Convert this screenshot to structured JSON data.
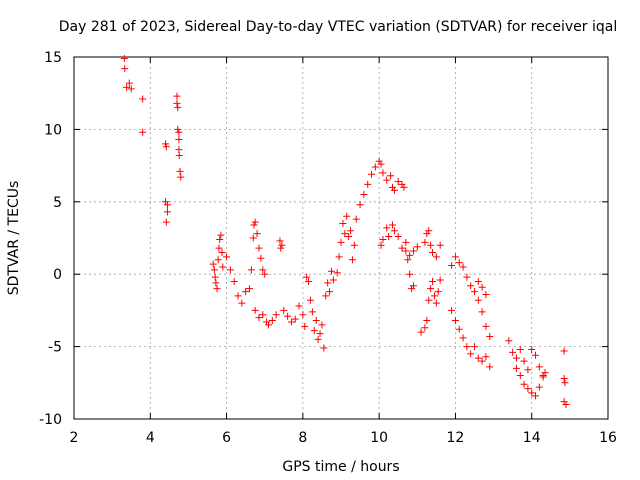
{
  "chart_data": {
    "type": "scatter",
    "title": "Day 281 of 2023, Sidereal Day-to-day VTEC variation (SDTVAR) for receiver iqal",
    "xlabel": "GPS time / hours",
    "ylabel": "SDTVAR / TECUs",
    "xlim": [
      2,
      16
    ],
    "ylim": [
      -10,
      15
    ],
    "xticks": [
      "2",
      "4",
      "6",
      "8",
      "10",
      "12",
      "14",
      "16"
    ],
    "yticks": [
      "15",
      "10",
      "5",
      "0",
      "-5",
      "-10"
    ],
    "grid": true,
    "marker": "+",
    "color": "#ff0000",
    "series": [
      {
        "name": "SDTVAR",
        "points": [
          [
            3.32,
            14.9
          ],
          [
            3.33,
            14.2
          ],
          [
            3.38,
            12.9
          ],
          [
            3.45,
            13.2
          ],
          [
            3.5,
            12.8
          ],
          [
            3.8,
            12.1
          ],
          [
            3.8,
            9.8
          ],
          [
            4.4,
            9.0
          ],
          [
            4.42,
            8.8
          ],
          [
            4.4,
            5.0
          ],
          [
            4.45,
            4.8
          ],
          [
            4.45,
            4.3
          ],
          [
            4.42,
            3.6
          ],
          [
            4.7,
            12.3
          ],
          [
            4.7,
            11.8
          ],
          [
            4.72,
            11.5
          ],
          [
            4.72,
            10.0
          ],
          [
            4.75,
            9.8
          ],
          [
            4.75,
            9.3
          ],
          [
            4.75,
            8.6
          ],
          [
            4.76,
            8.2
          ],
          [
            4.78,
            7.1
          ],
          [
            4.8,
            6.7
          ],
          [
            5.65,
            0.7
          ],
          [
            5.68,
            0.3
          ],
          [
            5.7,
            -0.2
          ],
          [
            5.72,
            -0.6
          ],
          [
            5.75,
            -1.0
          ],
          [
            5.78,
            1.0
          ],
          [
            5.8,
            1.8
          ],
          [
            5.82,
            2.4
          ],
          [
            5.85,
            2.7
          ],
          [
            5.88,
            1.5
          ],
          [
            5.9,
            0.5
          ],
          [
            6.0,
            1.2
          ],
          [
            6.1,
            0.3
          ],
          [
            6.2,
            -0.5
          ],
          [
            6.3,
            -1.5
          ],
          [
            6.4,
            -2.0
          ],
          [
            6.5,
            -1.2
          ],
          [
            6.6,
            -1.0
          ],
          [
            6.65,
            0.3
          ],
          [
            6.7,
            2.5
          ],
          [
            6.72,
            3.4
          ],
          [
            6.75,
            3.6
          ],
          [
            6.8,
            2.8
          ],
          [
            6.85,
            1.8
          ],
          [
            6.9,
            1.1
          ],
          [
            6.95,
            0.3
          ],
          [
            7.0,
            0.0
          ],
          [
            6.75,
            -2.5
          ],
          [
            6.85,
            -3.0
          ],
          [
            6.95,
            -2.8
          ],
          [
            7.05,
            -3.3
          ],
          [
            7.1,
            -3.5
          ],
          [
            7.2,
            -3.2
          ],
          [
            7.3,
            -2.8
          ],
          [
            7.4,
            2.3
          ],
          [
            7.42,
            1.8
          ],
          [
            7.45,
            2.0
          ],
          [
            7.5,
            -2.5
          ],
          [
            7.6,
            -2.9
          ],
          [
            7.7,
            -3.3
          ],
          [
            7.8,
            -3.1
          ],
          [
            7.9,
            -2.2
          ],
          [
            8.0,
            -2.8
          ],
          [
            8.05,
            -3.6
          ],
          [
            8.1,
            -0.2
          ],
          [
            8.15,
            -0.5
          ],
          [
            8.2,
            -1.8
          ],
          [
            8.25,
            -2.6
          ],
          [
            8.3,
            -3.9
          ],
          [
            8.35,
            -3.2
          ],
          [
            8.4,
            -4.5
          ],
          [
            8.45,
            -4.1
          ],
          [
            8.5,
            -3.5
          ],
          [
            8.55,
            -5.1
          ],
          [
            8.6,
            -1.5
          ],
          [
            8.65,
            -0.6
          ],
          [
            8.7,
            -1.2
          ],
          [
            8.75,
            0.2
          ],
          [
            8.8,
            -0.4
          ],
          [
            8.9,
            0.1
          ],
          [
            8.95,
            1.2
          ],
          [
            9.0,
            2.2
          ],
          [
            9.05,
            3.5
          ],
          [
            9.1,
            2.8
          ],
          [
            9.15,
            4.0
          ],
          [
            9.2,
            2.6
          ],
          [
            9.25,
            3.0
          ],
          [
            9.3,
            1.0
          ],
          [
            9.35,
            2.0
          ],
          [
            9.4,
            3.8
          ],
          [
            9.5,
            4.8
          ],
          [
            9.6,
            5.5
          ],
          [
            9.7,
            6.2
          ],
          [
            9.8,
            6.9
          ],
          [
            9.9,
            7.4
          ],
          [
            10.0,
            7.8
          ],
          [
            10.05,
            7.6
          ],
          [
            10.1,
            7.0
          ],
          [
            10.2,
            6.5
          ],
          [
            10.3,
            6.8
          ],
          [
            10.35,
            6.0
          ],
          [
            10.4,
            5.8
          ],
          [
            10.5,
            6.4
          ],
          [
            10.6,
            6.2
          ],
          [
            10.65,
            6.0
          ],
          [
            10.05,
            2.0
          ],
          [
            10.1,
            2.4
          ],
          [
            10.2,
            3.2
          ],
          [
            10.25,
            2.6
          ],
          [
            10.35,
            3.4
          ],
          [
            10.4,
            3.0
          ],
          [
            10.5,
            2.6
          ],
          [
            10.6,
            1.8
          ],
          [
            10.7,
            1.6
          ],
          [
            10.8,
            1.3
          ],
          [
            10.9,
            1.6
          ],
          [
            11.0,
            1.9
          ],
          [
            10.7,
            2.2
          ],
          [
            10.75,
            1.0
          ],
          [
            10.8,
            0.0
          ],
          [
            10.85,
            -1.0
          ],
          [
            10.9,
            -0.8
          ],
          [
            11.1,
            -4.0
          ],
          [
            11.2,
            -3.7
          ],
          [
            11.25,
            -3.2
          ],
          [
            11.3,
            -1.8
          ],
          [
            11.35,
            -1.0
          ],
          [
            11.4,
            -0.5
          ],
          [
            11.45,
            -1.5
          ],
          [
            11.5,
            -2.0
          ],
          [
            11.55,
            -1.2
          ],
          [
            11.6,
            -0.4
          ],
          [
            11.2,
            2.2
          ],
          [
            11.25,
            2.8
          ],
          [
            11.3,
            3.0
          ],
          [
            11.35,
            2.0
          ],
          [
            11.4,
            1.5
          ],
          [
            11.5,
            1.2
          ],
          [
            11.6,
            2.0
          ],
          [
            11.9,
            0.6
          ],
          [
            12.0,
            1.2
          ],
          [
            12.1,
            0.8
          ],
          [
            12.2,
            0.5
          ],
          [
            12.3,
            -0.2
          ],
          [
            12.4,
            -0.8
          ],
          [
            12.5,
            -1.2
          ],
          [
            12.6,
            -1.8
          ],
          [
            12.7,
            -2.6
          ],
          [
            12.8,
            -3.6
          ],
          [
            12.9,
            -4.3
          ],
          [
            11.9,
            -2.5
          ],
          [
            12.0,
            -3.2
          ],
          [
            12.1,
            -3.8
          ],
          [
            12.2,
            -4.4
          ],
          [
            12.3,
            -5.0
          ],
          [
            12.4,
            -5.5
          ],
          [
            12.5,
            -5.0
          ],
          [
            12.6,
            -5.8
          ],
          [
            12.7,
            -6.0
          ],
          [
            12.8,
            -5.7
          ],
          [
            12.9,
            -6.4
          ],
          [
            12.6,
            -0.5
          ],
          [
            12.7,
            -0.9
          ],
          [
            12.8,
            -1.4
          ],
          [
            13.4,
            -4.6
          ],
          [
            13.5,
            -5.4
          ],
          [
            13.6,
            -5.8
          ],
          [
            13.7,
            -5.2
          ],
          [
            13.8,
            -6.0
          ],
          [
            13.9,
            -6.6
          ],
          [
            14.0,
            -5.2
          ],
          [
            14.1,
            -5.6
          ],
          [
            14.2,
            -6.4
          ],
          [
            14.3,
            -7.1
          ],
          [
            13.6,
            -6.5
          ],
          [
            13.7,
            -7.0
          ],
          [
            13.8,
            -7.6
          ],
          [
            13.9,
            -7.9
          ],
          [
            14.0,
            -8.2
          ],
          [
            14.1,
            -8.4
          ],
          [
            14.2,
            -7.8
          ],
          [
            14.3,
            -7.0
          ],
          [
            14.35,
            -6.8
          ],
          [
            14.85,
            -5.3
          ],
          [
            14.85,
            -7.2
          ],
          [
            14.87,
            -7.5
          ],
          [
            14.85,
            -8.8
          ],
          [
            14.9,
            -9.0
          ]
        ]
      }
    ]
  }
}
